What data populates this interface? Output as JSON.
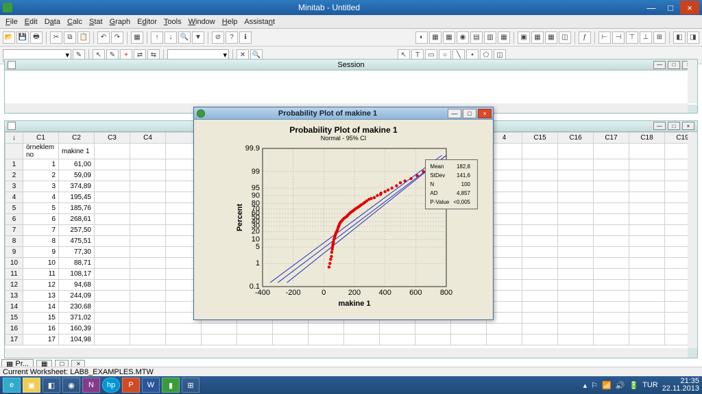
{
  "titlebar": {
    "title": "Minitab - Untitled"
  },
  "menu": [
    "File",
    "Edit",
    "Data",
    "Calc",
    "Stat",
    "Graph",
    "Editor",
    "Tools",
    "Window",
    "Help",
    "Assistant"
  ],
  "session": {
    "title": "Session"
  },
  "worksheet": {
    "cols": [
      "C1",
      "C2",
      "C3",
      "C4",
      "",
      "",
      "",
      "",
      "",
      "",
      "",
      "",
      "",
      "4",
      "C15",
      "C16",
      "C17",
      "C18",
      "C19"
    ],
    "labels": [
      "örneklem no",
      "makine 1",
      "",
      "",
      "",
      "",
      "",
      "",
      "",
      "",
      "",
      "",
      "",
      "",
      "",
      "",
      "",
      "",
      ""
    ],
    "rows": [
      [
        1,
        "61,00"
      ],
      [
        2,
        "59,09"
      ],
      [
        3,
        "374,89"
      ],
      [
        4,
        "195,45"
      ],
      [
        5,
        "185,76"
      ],
      [
        6,
        "268,61"
      ],
      [
        7,
        "257,50"
      ],
      [
        8,
        "475,51"
      ],
      [
        9,
        "77,30"
      ],
      [
        10,
        "88,71"
      ],
      [
        11,
        "108,17"
      ],
      [
        12,
        "94,68"
      ],
      [
        13,
        "244,09"
      ],
      [
        14,
        "230,68"
      ],
      [
        15,
        "371,02"
      ],
      [
        16,
        "160,39"
      ],
      [
        17,
        "104,98"
      ]
    ]
  },
  "plot": {
    "window_title": "Probability Plot of makine 1",
    "title": "Probability Plot of makine 1",
    "subtitle": "Normal - 95% CI",
    "xlabel": "makine 1",
    "ylabel": "Percent",
    "xlim": [
      -400,
      800
    ],
    "xtick_step": 200,
    "yticks": [
      0.1,
      1,
      5,
      10,
      20,
      30,
      40,
      50,
      60,
      70,
      80,
      90,
      95,
      99,
      99.9
    ],
    "stats": {
      "Mean": "182,8",
      "StDev": "141,6",
      "N": "100",
      "AD": "4,857",
      "P-Value": "<0,005"
    },
    "point_color": "#e00000",
    "line_color": "#2030c0",
    "grid_color": "#b0b0b0",
    "bg": "#ece9d8",
    "ci_lines": [
      [
        -300,
        -90,
        560,
        800
      ],
      [
        -240,
        -40,
        610,
        800
      ],
      [
        -350,
        -140,
        510,
        770
      ]
    ],
    "points": [
      [
        34,
        0.7
      ],
      [
        40,
        1
      ],
      [
        45,
        1.5
      ],
      [
        50,
        2
      ],
      [
        52,
        3
      ],
      [
        55,
        4
      ],
      [
        57,
        5
      ],
      [
        59,
        6
      ],
      [
        61,
        7
      ],
      [
        63,
        8
      ],
      [
        66,
        10
      ],
      [
        70,
        12
      ],
      [
        74,
        14
      ],
      [
        77,
        16
      ],
      [
        80,
        18
      ],
      [
        85,
        20
      ],
      [
        88,
        22
      ],
      [
        92,
        25
      ],
      [
        95,
        28
      ],
      [
        98,
        30
      ],
      [
        100,
        32
      ],
      [
        104,
        35
      ],
      [
        108,
        38
      ],
      [
        112,
        40
      ],
      [
        118,
        42
      ],
      [
        125,
        45
      ],
      [
        132,
        48
      ],
      [
        140,
        50
      ],
      [
        148,
        52
      ],
      [
        155,
        55
      ],
      [
        160,
        57
      ],
      [
        168,
        60
      ],
      [
        175,
        62
      ],
      [
        182,
        64
      ],
      [
        190,
        66
      ],
      [
        198,
        68
      ],
      [
        205,
        70
      ],
      [
        215,
        72
      ],
      [
        225,
        74
      ],
      [
        235,
        76
      ],
      [
        244,
        78
      ],
      [
        257,
        80
      ],
      [
        268,
        82
      ],
      [
        280,
        84
      ],
      [
        295,
        86
      ],
      [
        310,
        87
      ],
      [
        330,
        88
      ],
      [
        350,
        90
      ],
      [
        371,
        91
      ],
      [
        374,
        92
      ],
      [
        400,
        93
      ],
      [
        420,
        94
      ],
      [
        445,
        95
      ],
      [
        475,
        96
      ],
      [
        500,
        97
      ],
      [
        530,
        97.5
      ],
      [
        570,
        98
      ],
      [
        610,
        98.5
      ],
      [
        650,
        99
      ],
      [
        700,
        99.3
      ],
      [
        760,
        99.5
      ]
    ]
  },
  "doctab": {
    "label": "Pr..."
  },
  "status": {
    "text": "Current Worksheet: LAB8_EXAMPLES.MTW"
  },
  "tray": {
    "lang": "TUR",
    "time": "21:35",
    "date": "22.11.2013"
  }
}
